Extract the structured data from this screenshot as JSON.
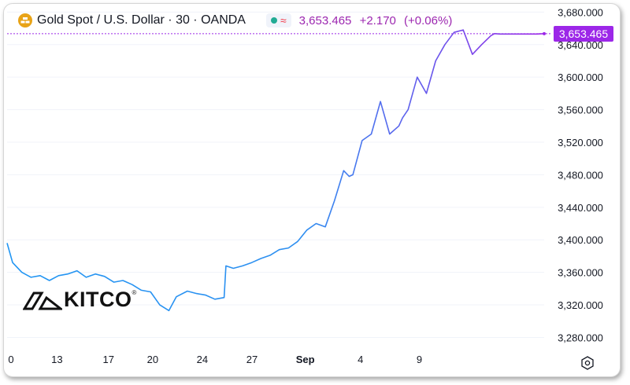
{
  "header": {
    "title": "Gold Spot / U.S. Dollar · 30 · OANDA",
    "last_price": "3,653.465",
    "change": "+2.170",
    "change_pct": "(+0.06%)",
    "icons": [
      "gold-bars-icon",
      "live-dot-icon",
      "wave-icon"
    ]
  },
  "price_tag": "3,653.465",
  "watermark": {
    "text": "KITCO",
    "reg": "®"
  },
  "colors": {
    "line_start": "#2196f3",
    "line_end": "#9c27e8",
    "price_line": "#9c27e8",
    "axis_text": "#131722",
    "grid": "#f0f3fa"
  },
  "chart_data": {
    "type": "line",
    "title": "Gold Spot / U.S. Dollar · 30 · OANDA",
    "xlabel": "",
    "ylabel": "",
    "x_ticks": [
      "0",
      "13",
      "17",
      "20",
      "24",
      "27",
      "Sep",
      "4",
      "9"
    ],
    "y_ticks": [
      "3,280.000",
      "3,320.000",
      "3,360.000",
      "3,400.000",
      "3,440.000",
      "3,480.000",
      "3,520.000",
      "3,560.000",
      "3,600.000",
      "3,640.000",
      "3,680.000"
    ],
    "ylim": [
      3265,
      3690
    ],
    "xlim": [
      0,
      29.2
    ],
    "grid": true,
    "last_value": 3653.465,
    "x": [
      0,
      0.3,
      0.8,
      1.3,
      1.8,
      2.3,
      2.8,
      3.3,
      3.8,
      4.3,
      4.8,
      5.3,
      5.8,
      6.3,
      6.8,
      7.3,
      7.8,
      8.3,
      8.8,
      9.2,
      9.8,
      10.3,
      10.8,
      11.3,
      11.8,
      11.9,
      12.3,
      12.8,
      13.3,
      13.8,
      14.3,
      14.8,
      15.3,
      15.8,
      16.3,
      16.8,
      17.3,
      17.8,
      18.3,
      18.6,
      18.8,
      19.3,
      19.8,
      20.3,
      20.8,
      21.3,
      21.5,
      21.8,
      22.3,
      22.8,
      23.3,
      23.8,
      24.3,
      24.8,
      25.3,
      25.8,
      26.3,
      26.5,
      26.8,
      27.3,
      27.8,
      28.3,
      28.8,
      29.2
    ],
    "y": [
      3396,
      3372,
      3360,
      3354,
      3356,
      3350,
      3356,
      3358,
      3362,
      3354,
      3358,
      3355,
      3348,
      3350,
      3345,
      3338,
      3336,
      3320,
      3313,
      3330,
      3337,
      3334,
      3332,
      3327,
      3329,
      3368,
      3365,
      3368,
      3372,
      3377,
      3381,
      3388,
      3390,
      3398,
      3412,
      3420,
      3416,
      3448,
      3485,
      3478,
      3480,
      3522,
      3530,
      3570,
      3530,
      3540,
      3550,
      3560,
      3600,
      3580,
      3620,
      3640,
      3655,
      3658,
      3628,
      3640,
      3651,
      3653.465,
      3653,
      3653,
      3653,
      3653,
      3653,
      3653.465
    ]
  }
}
